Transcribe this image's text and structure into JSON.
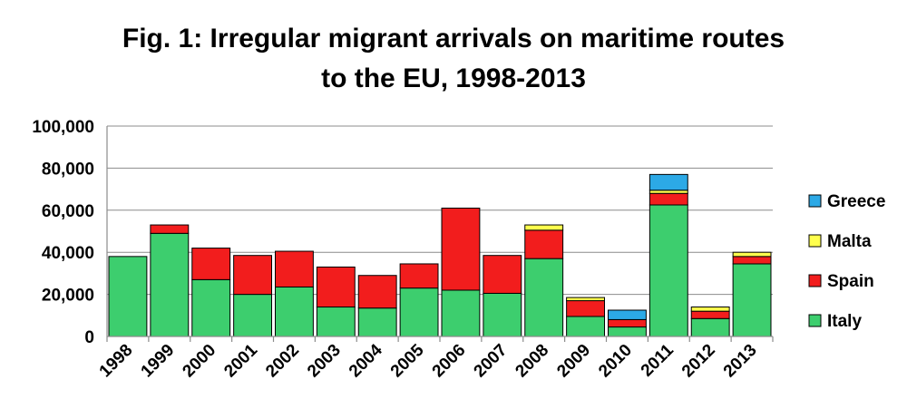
{
  "chart_data": {
    "type": "bar",
    "stacked": true,
    "title_lines": [
      "Fig. 1: Irregular migrant arrivals on maritime routes",
      "to the EU, 1998-2013"
    ],
    "xlabel": "",
    "ylabel": "",
    "ylim": [
      0,
      100000
    ],
    "y_ticks": [
      0,
      20000,
      40000,
      60000,
      80000,
      100000
    ],
    "y_tick_labels": [
      "0",
      "20,000",
      "40,000",
      "60,000",
      "80,000",
      "100,000"
    ],
    "grid": true,
    "legend_position": "right",
    "categories": [
      "1998",
      "1999",
      "2000",
      "2001",
      "2002",
      "2003",
      "2004",
      "2005",
      "2006",
      "2007",
      "2008",
      "2009",
      "2010",
      "2011",
      "2012",
      "2013"
    ],
    "series": [
      {
        "name": "Italy",
        "color": "#3dce6e",
        "values": [
          38000,
          49000,
          27000,
          20000,
          23500,
          14000,
          13500,
          23000,
          22000,
          20500,
          37000,
          9500,
          4500,
          62500,
          8500,
          34500
        ]
      },
      {
        "name": "Spain",
        "color": "#f21d1d",
        "values": [
          0,
          4000,
          15000,
          18500,
          17000,
          19000,
          15500,
          11500,
          39000,
          18000,
          13500,
          7500,
          3500,
          5500,
          3500,
          3500
        ]
      },
      {
        "name": "Malta",
        "color": "#ffff4d",
        "values": [
          0,
          0,
          0,
          0,
          0,
          0,
          0,
          0,
          0,
          0,
          2500,
          1500,
          0,
          1500,
          2000,
          2000
        ]
      },
      {
        "name": "Greece",
        "color": "#2ca9e6",
        "values": [
          0,
          0,
          0,
          0,
          0,
          0,
          0,
          0,
          0,
          0,
          0,
          0,
          4500,
          7500,
          0,
          0
        ]
      }
    ],
    "legend_order": [
      "Greece",
      "Malta",
      "Spain",
      "Italy"
    ]
  }
}
